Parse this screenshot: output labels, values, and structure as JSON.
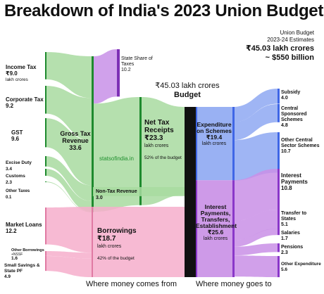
{
  "title": "Breakdown of India's 2023 Union Budget",
  "estimate": {
    "line1": "Union Budget",
    "line2": "2023-24 Estimates",
    "total": "₹45.03 lakh crores",
    "usd": "~ $550 billion"
  },
  "source": "statsofindia.in",
  "footer": {
    "left": "Where money comes from",
    "right": "Where money goes to"
  },
  "budget_label": {
    "amount": "₹45.03 lakh crores",
    "word": "Budget"
  },
  "chart_data": {
    "type": "sankey",
    "unit": "₹ lakh crores",
    "colors": {
      "tax": "#a8dba0",
      "tax_dark": "#1e8a2e",
      "state": "#c890e8",
      "state_dark": "#7d2fb5",
      "borrow": "#f6aecb",
      "borrow_dark": "#e07aa3",
      "budget_bar": "#111111",
      "scheme": "#8ea8f2",
      "scheme_dark": "#3f66e6",
      "interest": "#c98fe6",
      "interest_dark": "#8a37c9"
    },
    "sources": [
      {
        "name": "Income Tax",
        "value": 9.0,
        "value_label": "₹9.0",
        "sub": "lakh crores"
      },
      {
        "name": "Corporate Tax",
        "value": 9.2,
        "value_label": "9.2"
      },
      {
        "name": "GST",
        "value": 9.6,
        "value_label": "9.6"
      },
      {
        "name": "Excise Duty",
        "value": 3.4,
        "value_label": "3.4"
      },
      {
        "name": "Customs",
        "value": 2.3,
        "value_label": "2.3"
      },
      {
        "name": "Other Taxes",
        "value": 0.1,
        "value_label": "0.1"
      },
      {
        "name": "Market Loans",
        "value": 12.2,
        "value_label": "12.2"
      },
      {
        "name": "Other Borrowings",
        "value": 1.6,
        "value_label": "1.6",
        "sub": "+NSSF"
      },
      {
        "name": "Small Savings & State PF",
        "value": 4.9,
        "value_label": "4.9"
      }
    ],
    "intermediate": {
      "gross_tax": {
        "name": "Gross Tax Revenue",
        "value": 33.6,
        "value_label": "33.6"
      },
      "state_share": {
        "name": "State Share of Taxes",
        "value": 10.2,
        "value_label": "10.2"
      },
      "net_tax": {
        "name": "Net Tax Receipts",
        "value": 23.3,
        "value_label": "₹23.3",
        "sub": "lakh crores",
        "pct": "52% of the budget"
      },
      "non_tax": {
        "name": "Non-Tax Revenue",
        "value": 3.0,
        "value_label": "3.0"
      },
      "borrowings": {
        "name": "Borrowings",
        "value": 18.7,
        "value_label": "₹18.7",
        "sub": "lakh crores",
        "pct": "42% of the budget"
      }
    },
    "budget": {
      "value": 45.03
    },
    "uses": {
      "schemes": {
        "name": "Expenditure on Schemes",
        "value": 19.4,
        "value_label": "₹19.4",
        "sub": "lakh crores",
        "children": [
          {
            "name": "Subsidy",
            "value": 4.0,
            "value_label": "4.0"
          },
          {
            "name": "Central Sponsored Schemes",
            "value": 4.8,
            "value_label": "4.8"
          },
          {
            "name": "Other Central Sector Schemes",
            "value": 10.7,
            "value_label": "10.7"
          }
        ]
      },
      "other": {
        "name": "Interest Payments, Transfers, Establishment",
        "value": 25.6,
        "value_label": "₹25.6",
        "sub": "lakh crores",
        "children": [
          {
            "name": "Interest Payments",
            "value": 10.8,
            "value_label": "10.8"
          },
          {
            "name": "Transfer to States",
            "value": 5.1,
            "value_label": "5.1"
          },
          {
            "name": "Salaries",
            "value": 1.7,
            "value_label": "1.7"
          },
          {
            "name": "Pensions",
            "value": 2.3,
            "value_label": "2.3"
          },
          {
            "name": "Other Expenditure",
            "value": 5.6,
            "value_label": "5.6"
          }
        ]
      }
    }
  }
}
